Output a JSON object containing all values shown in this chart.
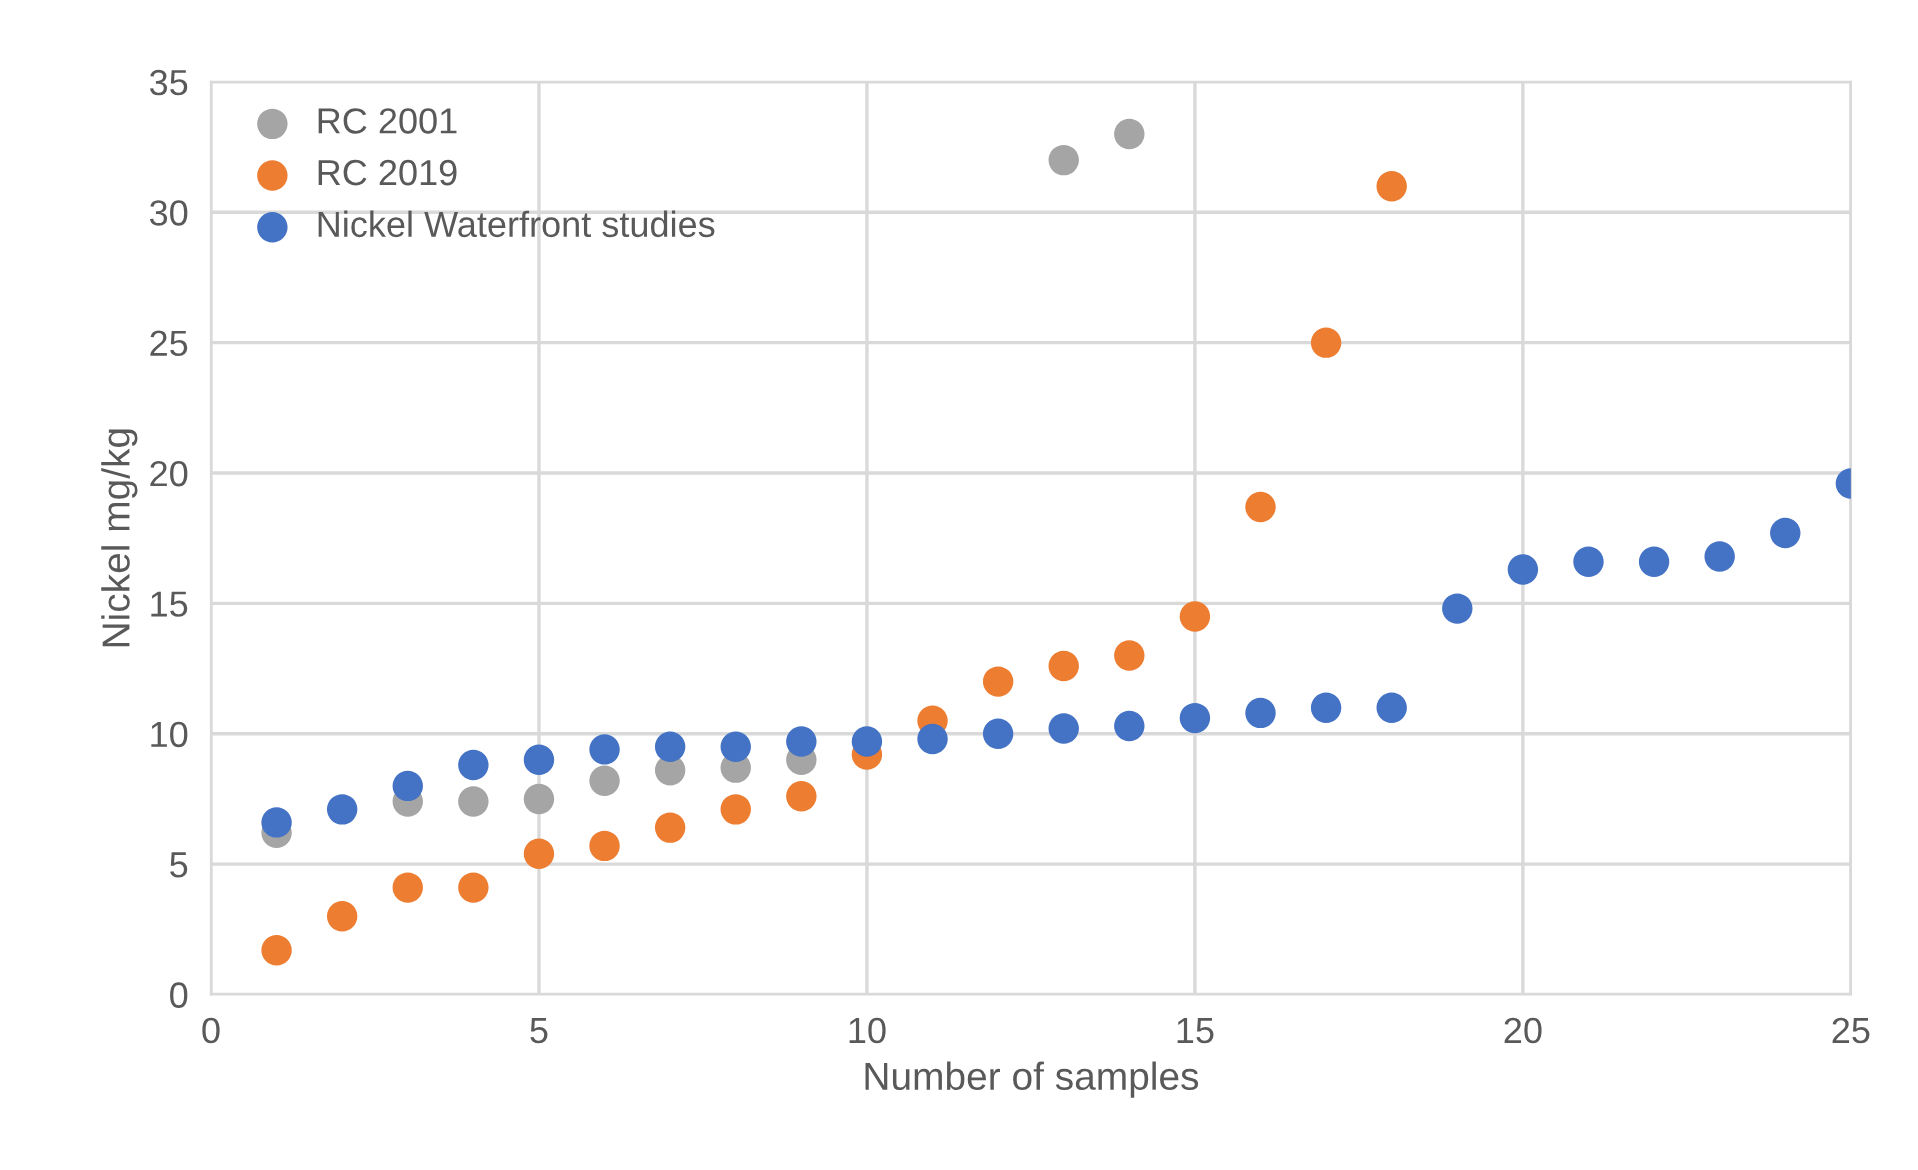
{
  "chart_data": {
    "type": "scatter",
    "xlabel": "Number of samples",
    "ylabel": "Nickel mg/kg",
    "xlim": [
      0,
      25
    ],
    "xticks": [
      0,
      5,
      10,
      15,
      20,
      25
    ],
    "ylim": [
      0,
      35
    ],
    "yticks": [
      0,
      5,
      10,
      15,
      20,
      25,
      30,
      35
    ],
    "grid": true,
    "legend": "top left",
    "marker": "circle",
    "series": [
      {
        "name": "RC 2001",
        "color": "#a5a5a5",
        "x": [
          1,
          2,
          3,
          4,
          5,
          6,
          7,
          8,
          9,
          13,
          14
        ],
        "values": [
          6.2,
          null,
          7.4,
          7.4,
          7.5,
          8.2,
          8.6,
          8.7,
          9.0,
          32.0,
          33.0
        ]
      },
      {
        "name": "RC 2019",
        "color": "#ed7d31",
        "x": [
          1,
          2,
          3,
          4,
          5,
          6,
          7,
          8,
          9,
          10,
          11,
          12,
          13,
          14,
          15,
          16,
          17,
          18
        ],
        "values": [
          1.7,
          3.0,
          4.1,
          4.1,
          5.4,
          5.7,
          6.4,
          7.1,
          7.6,
          9.2,
          10.5,
          12.0,
          12.6,
          13.0,
          14.5,
          18.7,
          25.0,
          31.0
        ]
      },
      {
        "name": "Nickel Waterfront studies",
        "color": "#4472c4",
        "x": [
          1,
          2,
          3,
          4,
          5,
          6,
          7,
          8,
          9,
          10,
          11,
          12,
          13,
          14,
          15,
          16,
          17,
          18,
          19,
          20,
          21,
          22,
          23,
          24,
          25
        ],
        "values": [
          6.6,
          7.1,
          8.0,
          8.8,
          9.0,
          9.4,
          9.5,
          9.5,
          9.7,
          9.7,
          9.8,
          10.0,
          10.2,
          10.3,
          10.6,
          10.8,
          11.0,
          11.0,
          14.8,
          16.3,
          16.6,
          16.6,
          16.8,
          17.7,
          19.6
        ]
      }
    ]
  }
}
